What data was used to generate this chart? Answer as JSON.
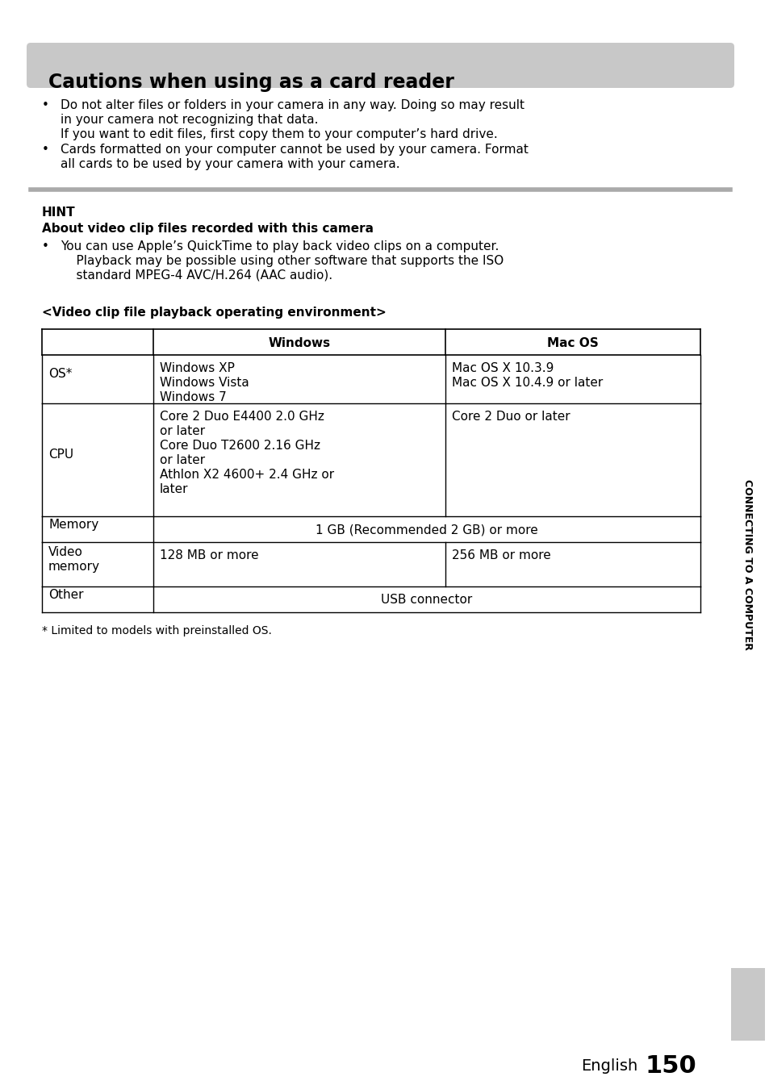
{
  "title": "Cautions when using as a card reader",
  "title_bg_color": "#c8c8c8",
  "bullet1_line1": "Do not alter files or folders in your camera in any way. Doing so may result",
  "bullet1_line2": "in your camera not recognizing that data.",
  "bullet1_line3": "If you want to edit files, first copy them to your computer’s hard drive.",
  "bullet2_line1": "Cards formatted on your computer cannot be used by your camera. Format",
  "bullet2_line2": "all cards to be used by your camera with your camera.",
  "hint_label": "HINT",
  "hint_subhead": "About video clip files recorded with this camera",
  "hint_bullet1": "You can use Apple’s QuickTime to play back video clips on a computer.\n    Playback may be possible using other software that supports the ISO\n    standard MPEG-4 AVC/H.264 (AAC audio).",
  "table_title": "<Video clip file playback operating environment>",
  "table_col_headers": [
    "",
    "Windows",
    "Mac OS"
  ],
  "table_rows": [
    [
      "OS*",
      "Windows XP\nWindows Vista\nWindows 7",
      "Mac OS X 10.3.9\nMac OS X 10.4.9 or later"
    ],
    [
      "CPU",
      "Core 2 Duo E4400 2.0 GHz\nor later\nCore Duo T2600 2.16 GHz\nor later\nAthlon X2 4600+ 2.4 GHz or\nlater",
      "Core 2 Duo or later"
    ],
    [
      "Memory",
      "1 GB (Recommended 2 GB) or more",
      null
    ],
    [
      "Video\nmemory",
      "128 MB or more",
      "256 MB or more"
    ],
    [
      "Other",
      "USB connector",
      null
    ]
  ],
  "footnote": "* Limited to models with preinstalled OS.",
  "sidebar_text": "CONNECTING TO A COMPUTER",
  "sidebar_bg": "#c8c8c8",
  "page_label_english": "English",
  "page_number": "150",
  "separator_color": "#aaaaaa",
  "bg_color": "#ffffff"
}
